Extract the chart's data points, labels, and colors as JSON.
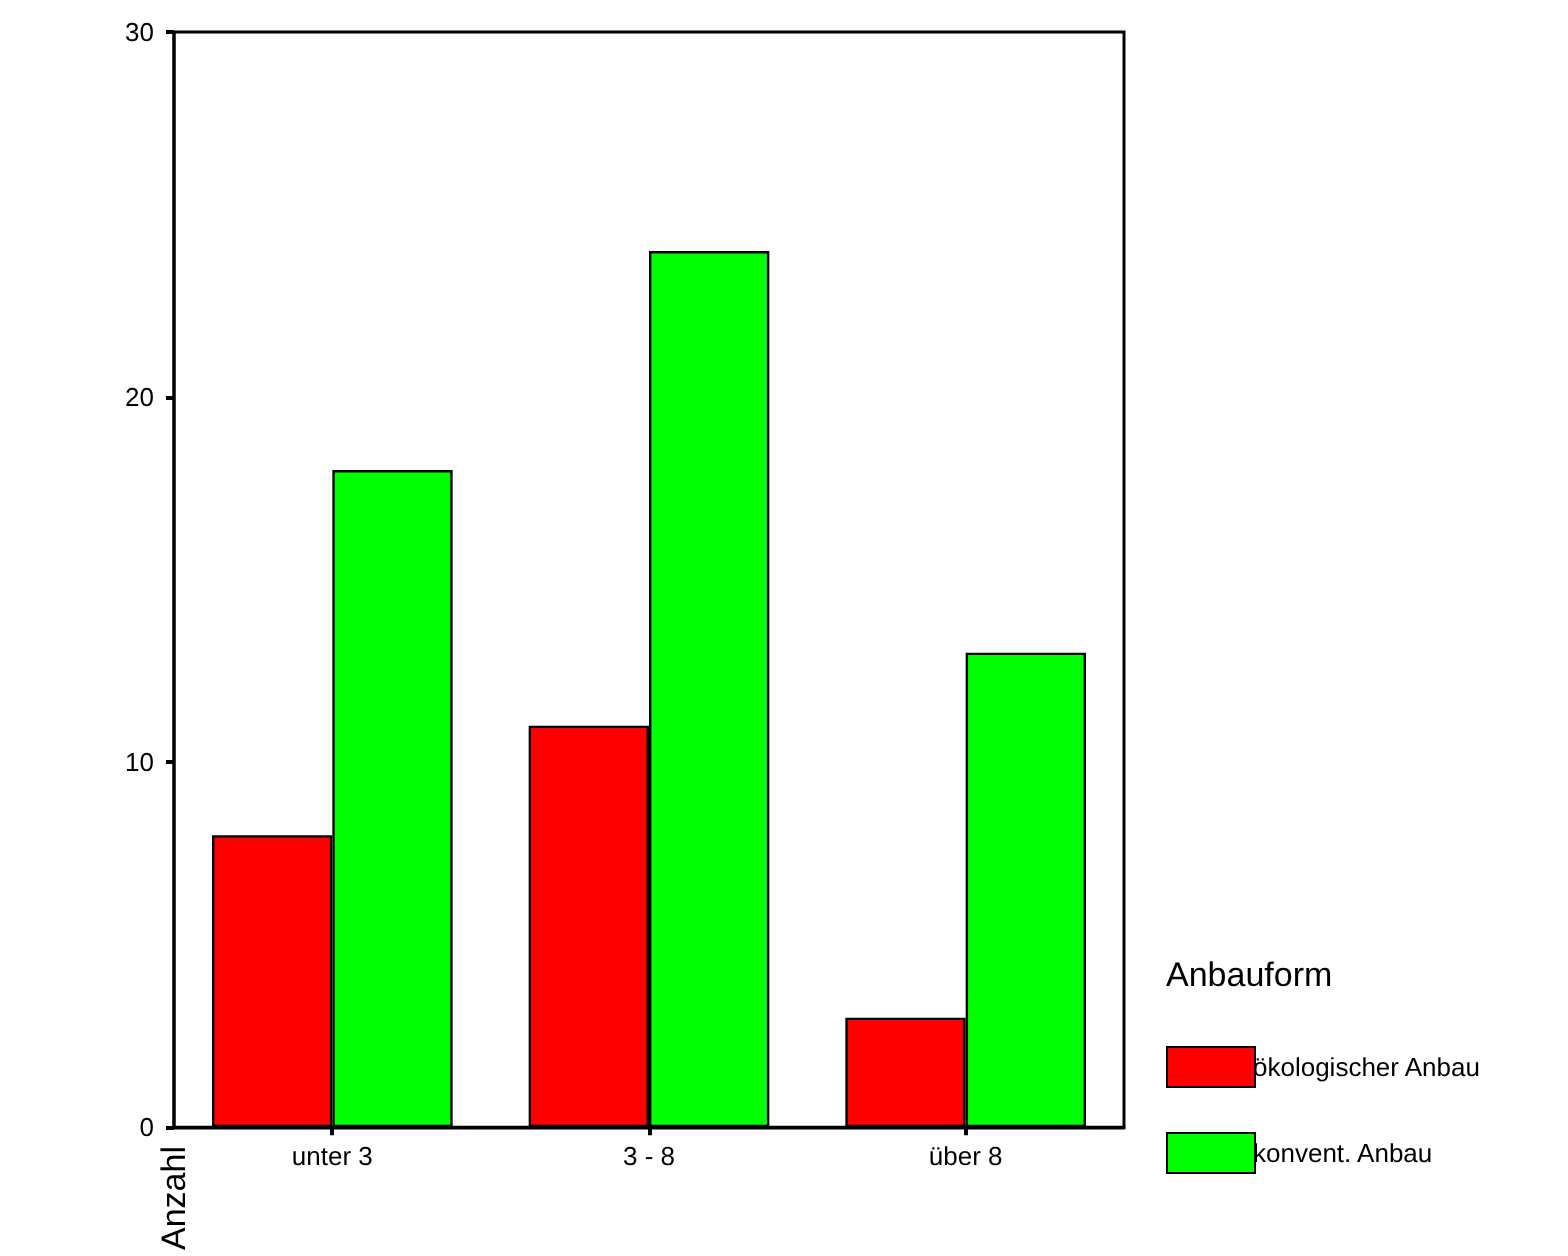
{
  "chart_data": {
    "type": "bar",
    "ylabel": "Anzahl",
    "legend_title": "Anbauform",
    "categories": [
      "unter 3",
      "3 - 8",
      "über 8"
    ],
    "series": [
      {
        "name": "ökologischer Anbau",
        "color": "#ff0000",
        "values": [
          8,
          11,
          3
        ]
      },
      {
        "name": "konvent. Anbau",
        "color": "#00ff00",
        "values": [
          18,
          24,
          13
        ]
      }
    ],
    "ylim": [
      0,
      30
    ],
    "yticks": [
      0,
      10,
      20,
      30
    ],
    "grid": false,
    "legend": "right"
  }
}
